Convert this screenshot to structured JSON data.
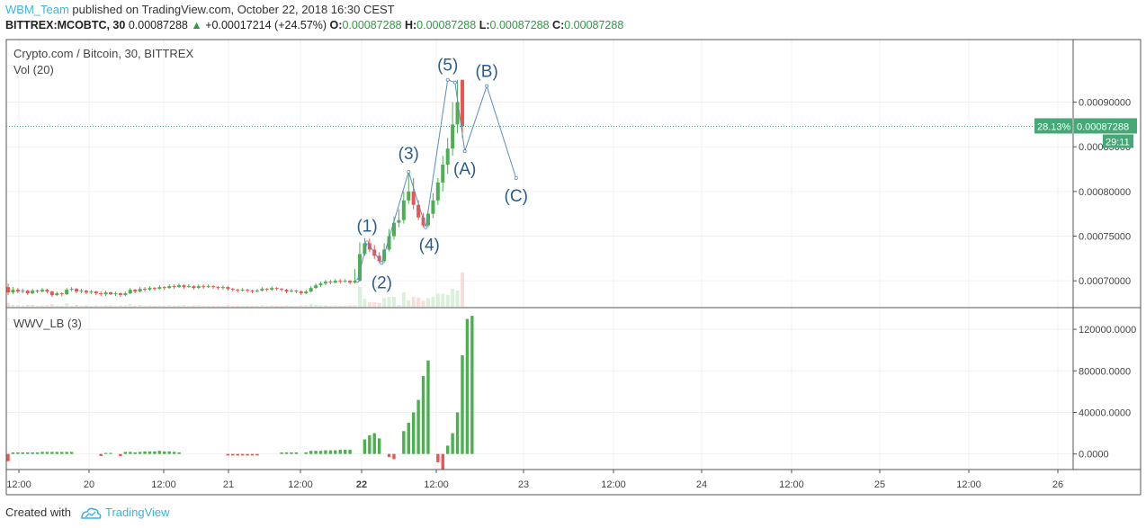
{
  "header": {
    "author": "WBM_Team",
    "published_text": "published on TradingView.com, October 22, 2018 16:30 CEST",
    "symbol_line": "BITTREX:MCOBTC, 30",
    "last": "0.00087288",
    "change": "+0.00017214 (+24.57%)",
    "o_label": "O:",
    "o_value": "0.00087288",
    "h_label": "H:",
    "h_value": "0.00087288",
    "l_label": "L:",
    "l_value": "0.00087288",
    "c_label": "C:",
    "c_value": "0.00087288"
  },
  "main_pane": {
    "title": "Crypto.com / Bitcoin, 30, BITTREX",
    "volume_label": "Vol (20)",
    "price_badge": "0.00087288",
    "percent_badge": "28.13%",
    "countdown_badge": "29:11"
  },
  "indicator_pane": {
    "title": "WWV_LB (3)"
  },
  "footer": {
    "created_with": "Created with",
    "brand": "TradingView"
  },
  "colors": {
    "up": "#4caf50",
    "down": "#ef5350",
    "wave": "#2a5d8a",
    "badge": "#47a877",
    "grid": "#eef0f3"
  },
  "chart_data": [
    {
      "type": "candlestick",
      "title": "Crypto.com / Bitcoin, 30, BITTREX",
      "y_ticks": [
        "0.00070000",
        "0.00075000",
        "0.00080000",
        "0.00085000",
        "0.00090000"
      ],
      "ylim": [
        0.00067,
        0.00097
      ],
      "last_price": 0.00087288,
      "x_tick_labels": [
        "12:00",
        "20",
        "12:00",
        "21",
        "12:00",
        "22",
        "12:00",
        "23",
        "12:00",
        "24",
        "12:00",
        "25",
        "12:00",
        "26"
      ],
      "candles": [
        {
          "o": 0.000693,
          "c": 0.000687,
          "h": 0.000697,
          "l": 0.000684
        },
        {
          "o": 0.000687,
          "c": 0.00069,
          "h": 0.000693,
          "l": 0.000685
        },
        {
          "o": 0.00069,
          "c": 0.000688,
          "h": 0.000692,
          "l": 0.000686
        },
        {
          "o": 0.000688,
          "c": 0.000689,
          "h": 0.000691,
          "l": 0.000686
        },
        {
          "o": 0.000689,
          "c": 0.000686,
          "h": 0.00069,
          "l": 0.000684
        },
        {
          "o": 0.000686,
          "c": 0.000689,
          "h": 0.000691,
          "l": 0.000685
        },
        {
          "o": 0.000689,
          "c": 0.000688,
          "h": 0.00069,
          "l": 0.000686
        },
        {
          "o": 0.000688,
          "c": 0.00069,
          "h": 0.000692,
          "l": 0.000687
        },
        {
          "o": 0.00069,
          "c": 0.000688,
          "h": 0.000691,
          "l": 0.000686
        },
        {
          "o": 0.000688,
          "c": 0.000684,
          "h": 0.000689,
          "l": 0.000682
        },
        {
          "o": 0.000684,
          "c": 0.000686,
          "h": 0.000688,
          "l": 0.000683
        },
        {
          "o": 0.000686,
          "c": 0.000685,
          "h": 0.000687,
          "l": 0.000683
        },
        {
          "o": 0.000685,
          "c": 0.00069,
          "h": 0.000692,
          "l": 0.000684
        },
        {
          "o": 0.00069,
          "c": 0.000691,
          "h": 0.000693,
          "l": 0.000688
        },
        {
          "o": 0.000691,
          "c": 0.000688,
          "h": 0.000692,
          "l": 0.000686
        },
        {
          "o": 0.000688,
          "c": 0.000689,
          "h": 0.000691,
          "l": 0.000686
        },
        {
          "o": 0.000689,
          "c": 0.000687,
          "h": 0.00069,
          "l": 0.000685
        },
        {
          "o": 0.000687,
          "c": 0.000688,
          "h": 0.00069,
          "l": 0.000685
        },
        {
          "o": 0.000688,
          "c": 0.000686,
          "h": 0.000689,
          "l": 0.000684
        },
        {
          "o": 0.000686,
          "c": 0.000685,
          "h": 0.000688,
          "l": 0.000683
        },
        {
          "o": 0.000685,
          "c": 0.000687,
          "h": 0.000689,
          "l": 0.000683
        },
        {
          "o": 0.000687,
          "c": 0.000685,
          "h": 0.000688,
          "l": 0.000684
        },
        {
          "o": 0.000685,
          "c": 0.000686,
          "h": 0.000688,
          "l": 0.000683
        },
        {
          "o": 0.000686,
          "c": 0.000684,
          "h": 0.000687,
          "l": 0.000682
        },
        {
          "o": 0.000684,
          "c": 0.000686,
          "h": 0.000688,
          "l": 0.000683
        },
        {
          "o": 0.000686,
          "c": 0.00069,
          "h": 0.000692,
          "l": 0.000685
        },
        {
          "o": 0.00069,
          "c": 0.000688,
          "h": 0.000691,
          "l": 0.000686
        },
        {
          "o": 0.000688,
          "c": 0.000691,
          "h": 0.000693,
          "l": 0.000687
        },
        {
          "o": 0.000691,
          "c": 0.00069,
          "h": 0.000693,
          "l": 0.000688
        },
        {
          "o": 0.00069,
          "c": 0.000692,
          "h": 0.000694,
          "l": 0.000689
        },
        {
          "o": 0.000692,
          "c": 0.000691,
          "h": 0.000693,
          "l": 0.000689
        },
        {
          "o": 0.000691,
          "c": 0.000693,
          "h": 0.000695,
          "l": 0.00069
        },
        {
          "o": 0.000693,
          "c": 0.000692,
          "h": 0.000694,
          "l": 0.00069
        },
        {
          "o": 0.000692,
          "c": 0.000694,
          "h": 0.000696,
          "l": 0.000691
        },
        {
          "o": 0.000694,
          "c": 0.000693,
          "h": 0.000696,
          "l": 0.000691
        },
        {
          "o": 0.000693,
          "c": 0.000695,
          "h": 0.000697,
          "l": 0.000692
        },
        {
          "o": 0.000695,
          "c": 0.000693,
          "h": 0.000696,
          "l": 0.000691
        },
        {
          "o": 0.000693,
          "c": 0.000694,
          "h": 0.000696,
          "l": 0.000692
        },
        {
          "o": 0.000694,
          "c": 0.000692,
          "h": 0.000695,
          "l": 0.00069
        },
        {
          "o": 0.000692,
          "c": 0.000694,
          "h": 0.000696,
          "l": 0.000691
        },
        {
          "o": 0.000694,
          "c": 0.000693,
          "h": 0.000696,
          "l": 0.000691
        },
        {
          "o": 0.000693,
          "c": 0.000694,
          "h": 0.000696,
          "l": 0.000692
        },
        {
          "o": 0.000694,
          "c": 0.000693,
          "h": 0.000695,
          "l": 0.000691
        },
        {
          "o": 0.000693,
          "c": 0.000692,
          "h": 0.000694,
          "l": 0.00069
        },
        {
          "o": 0.000692,
          "c": 0.000693,
          "h": 0.000695,
          "l": 0.00069
        },
        {
          "o": 0.000693,
          "c": 0.000691,
          "h": 0.000694,
          "l": 0.000689
        },
        {
          "o": 0.000691,
          "c": 0.00069,
          "h": 0.000692,
          "l": 0.000688
        },
        {
          "o": 0.00069,
          "c": 0.000689,
          "h": 0.000691,
          "l": 0.000687
        },
        {
          "o": 0.000689,
          "c": 0.00069,
          "h": 0.000692,
          "l": 0.000688
        },
        {
          "o": 0.00069,
          "c": 0.000689,
          "h": 0.000691,
          "l": 0.000687
        },
        {
          "o": 0.000689,
          "c": 0.000688,
          "h": 0.00069,
          "l": 0.000686
        },
        {
          "o": 0.000688,
          "c": 0.000689,
          "h": 0.000691,
          "l": 0.000687
        },
        {
          "o": 0.000689,
          "c": 0.000691,
          "h": 0.000693,
          "l": 0.000688
        },
        {
          "o": 0.000691,
          "c": 0.00069,
          "h": 0.000692,
          "l": 0.000688
        },
        {
          "o": 0.00069,
          "c": 0.000692,
          "h": 0.000694,
          "l": 0.000689
        },
        {
          "o": 0.000692,
          "c": 0.000691,
          "h": 0.000693,
          "l": 0.000689
        },
        {
          "o": 0.000691,
          "c": 0.00069,
          "h": 0.000692,
          "l": 0.000688
        },
        {
          "o": 0.00069,
          "c": 0.000688,
          "h": 0.000691,
          "l": 0.000686
        },
        {
          "o": 0.000688,
          "c": 0.000689,
          "h": 0.000691,
          "l": 0.000687
        },
        {
          "o": 0.000689,
          "c": 0.000688,
          "h": 0.00069,
          "l": 0.000686
        },
        {
          "o": 0.000688,
          "c": 0.000686,
          "h": 0.000689,
          "l": 0.000684
        },
        {
          "o": 0.000686,
          "c": 0.000688,
          "h": 0.00069,
          "l": 0.000685
        },
        {
          "o": 0.000688,
          "c": 0.000692,
          "h": 0.000694,
          "l": 0.000687
        },
        {
          "o": 0.000692,
          "c": 0.000695,
          "h": 0.000697,
          "l": 0.000691
        },
        {
          "o": 0.000695,
          "c": 0.000697,
          "h": 0.000699,
          "l": 0.000693
        },
        {
          "o": 0.000697,
          "c": 0.000699,
          "h": 0.000701,
          "l": 0.000695
        },
        {
          "o": 0.000699,
          "c": 0.000698,
          "h": 0.000701,
          "l": 0.000696
        },
        {
          "o": 0.000698,
          "c": 0.0007,
          "h": 0.000702,
          "l": 0.000697
        },
        {
          "o": 0.0007,
          "c": 0.000699,
          "h": 0.000702,
          "l": 0.000697
        },
        {
          "o": 0.000699,
          "c": 0.0007,
          "h": 0.000702,
          "l": 0.000698
        },
        {
          "o": 0.0007,
          "c": 0.000698,
          "h": 0.000701,
          "l": 0.000696
        },
        {
          "o": 0.000698,
          "c": 0.0007,
          "h": 0.000713,
          "l": 0.000697
        },
        {
          "o": 0.0007,
          "c": 0.00073,
          "h": 0.000743,
          "l": 0.000699
        },
        {
          "o": 0.00073,
          "c": 0.000742,
          "h": 0.000748,
          "l": 0.000728
        },
        {
          "o": 0.000742,
          "c": 0.000735,
          "h": 0.000747,
          "l": 0.000732
        },
        {
          "o": 0.000735,
          "c": 0.000728,
          "h": 0.00074,
          "l": 0.000724
        },
        {
          "o": 0.000728,
          "c": 0.000722,
          "h": 0.000732,
          "l": 0.00072
        },
        {
          "o": 0.000722,
          "c": 0.000735,
          "h": 0.000742,
          "l": 0.00072
        },
        {
          "o": 0.000735,
          "c": 0.00075,
          "h": 0.000758,
          "l": 0.000733
        },
        {
          "o": 0.00075,
          "c": 0.000765,
          "h": 0.000772,
          "l": 0.000746
        },
        {
          "o": 0.000765,
          "c": 0.000768,
          "h": 0.00078,
          "l": 0.00076
        },
        {
          "o": 0.000768,
          "c": 0.00079,
          "h": 0.0008,
          "l": 0.000764
        },
        {
          "o": 0.00079,
          "c": 0.0008,
          "h": 0.000822,
          "l": 0.000786
        },
        {
          "o": 0.0008,
          "c": 0.000785,
          "h": 0.000815,
          "l": 0.00078
        },
        {
          "o": 0.000785,
          "c": 0.000771,
          "h": 0.00079,
          "l": 0.000768
        },
        {
          "o": 0.000771,
          "c": 0.000762,
          "h": 0.000776,
          "l": 0.00076
        },
        {
          "o": 0.000762,
          "c": 0.000775,
          "h": 0.00078,
          "l": 0.00076
        },
        {
          "o": 0.000775,
          "c": 0.00079,
          "h": 0.000798,
          "l": 0.00077
        },
        {
          "o": 0.00079,
          "c": 0.00081,
          "h": 0.000815,
          "l": 0.000785
        },
        {
          "o": 0.00081,
          "c": 0.00083,
          "h": 0.00084,
          "l": 0.0008
        },
        {
          "o": 0.00083,
          "c": 0.000848,
          "h": 0.00086,
          "l": 0.00082
        },
        {
          "o": 0.000848,
          "c": 0.000875,
          "h": 0.0009,
          "l": 0.00084
        },
        {
          "o": 0.000875,
          "c": 0.0009,
          "h": 0.000925,
          "l": 0.000865
        },
        {
          "o": 0.000925,
          "c": 0.000873,
          "h": 0.000925,
          "l": 0.00086
        }
      ],
      "volumes": [
        0,
        0,
        0,
        0,
        0,
        0,
        0,
        0,
        0,
        0,
        0,
        0,
        0,
        0,
        0,
        0,
        0,
        0,
        0,
        0,
        0,
        0,
        0,
        0,
        0,
        0,
        0,
        0,
        0,
        0,
        0,
        0,
        0,
        0,
        0,
        0,
        0,
        0,
        0,
        0,
        0,
        0,
        0,
        0,
        0,
        0,
        0,
        0,
        0,
        0,
        0,
        0,
        0,
        0,
        0,
        0,
        0,
        0,
        0,
        0,
        0,
        0,
        0,
        0,
        0,
        0,
        0,
        0,
        0,
        0,
        0,
        0,
        0,
        0,
        0,
        0,
        0,
        0,
        0,
        0,
        0,
        0,
        0,
        0,
        0,
        0,
        0,
        0,
        0,
        0,
        0,
        0,
        0,
        0,
        0,
        0
      ],
      "wave_labels": [
        {
          "label": "(1)",
          "time": 73.5,
          "price": 0.000743
        },
        {
          "label": "(2)",
          "time": 76.5,
          "price": 0.00072
        },
        {
          "label": "(3)",
          "time": 82.0,
          "price": 0.000822
        },
        {
          "label": "(4)",
          "time": 85.5,
          "price": 0.00076
        },
        {
          "label": "(5)",
          "time": 90.0,
          "price": 0.000925
        },
        {
          "label": "(A)",
          "time": 93.5,
          "price": 0.000845
        },
        {
          "label": "(B)",
          "time": 98.0,
          "price": 0.000918
        },
        {
          "label": "(C)",
          "time": 104.0,
          "price": 0.000815
        }
      ],
      "wave_path": [
        {
          "time": 71.5,
          "price": 0.0007
        },
        {
          "time": 73.5,
          "price": 0.000743
        },
        {
          "time": 76.5,
          "price": 0.00072
        },
        {
          "time": 82.0,
          "price": 0.000822
        },
        {
          "time": 85.5,
          "price": 0.00076
        },
        {
          "time": 90.0,
          "price": 0.000925
        },
        {
          "time": 91.5,
          "price": 0.000922
        },
        {
          "time": 93.5,
          "price": 0.000845
        },
        {
          "time": 98.0,
          "price": 0.000918
        },
        {
          "time": 104.0,
          "price": 0.000815
        }
      ]
    },
    {
      "type": "bar",
      "title": "WWV_LB (3)",
      "y_ticks": [
        "0.0000",
        "40000.0000",
        "80000.0000",
        "120000.0000"
      ],
      "ylim": [
        -15000,
        140000
      ],
      "values": [
        -7000,
        1500,
        1500,
        1500,
        1500,
        1500,
        1500,
        2000,
        2000,
        2000,
        2000,
        2000,
        2000,
        2000,
        0,
        0,
        0,
        0,
        0,
        -2000,
        1000,
        1000,
        0,
        -2000,
        2000,
        2000,
        1500,
        2000,
        2500,
        2500,
        2500,
        3000,
        2500,
        2500,
        2000,
        1500,
        0,
        0,
        0,
        0,
        0,
        0,
        0,
        0,
        0,
        -1500,
        -1500,
        -1500,
        -1500,
        -1500,
        -1500,
        -1500,
        0,
        0,
        0,
        0,
        1500,
        1500,
        1500,
        1500,
        0,
        1500,
        3000,
        3000,
        3000,
        3500,
        3500,
        3500,
        4000,
        4000,
        4000,
        0,
        0,
        14000,
        18000,
        20000,
        15000,
        0,
        -3000,
        -5000,
        0,
        22000,
        30000,
        40000,
        52000,
        75000,
        90000,
        0,
        -8000,
        -15000,
        8000,
        20000,
        40000,
        95000,
        130000,
        133000
      ]
    }
  ]
}
